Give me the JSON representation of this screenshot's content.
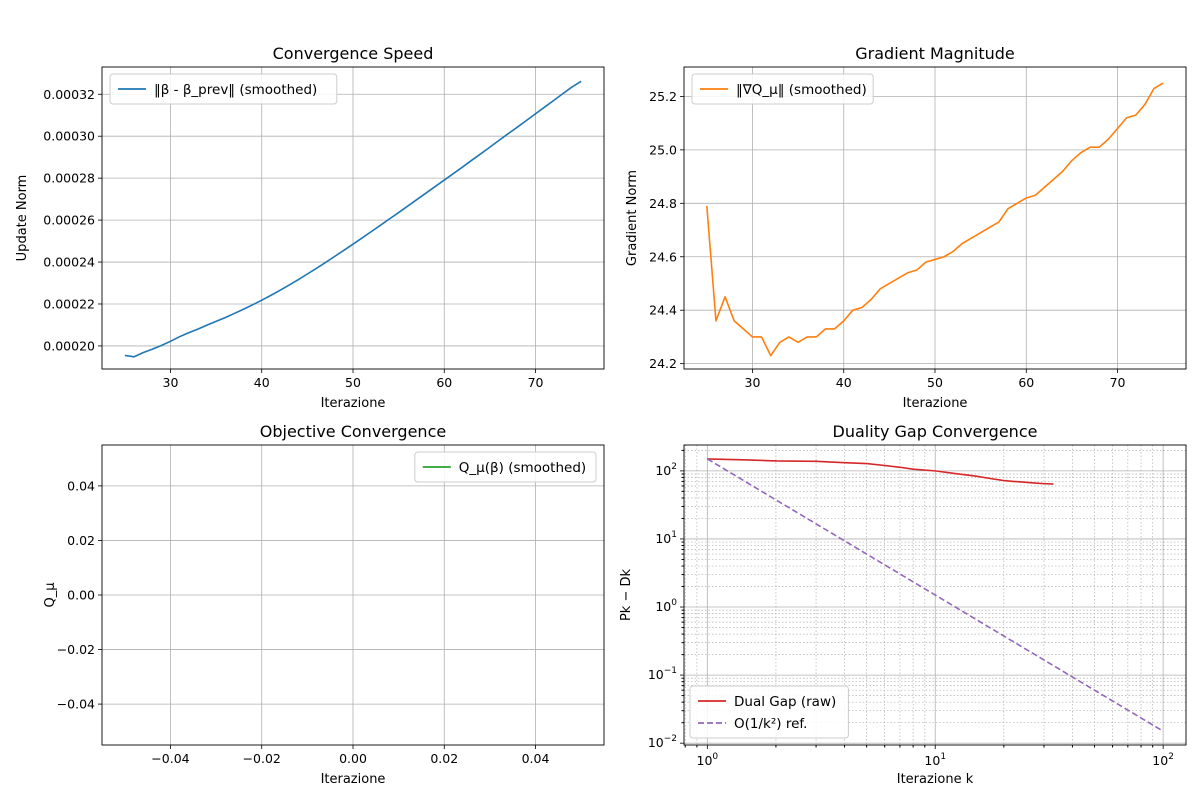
{
  "figure": {
    "suptitle": "",
    "background": "#ffffff"
  },
  "chart_data": [
    {
      "type": "line",
      "title": "Convergence Speed",
      "xlabel": "Iterazione",
      "ylabel": "Update Norm",
      "xlim": [
        22.5,
        77.5
      ],
      "ylim": [
        0.000189,
        0.000333
      ],
      "xticks": [
        30,
        40,
        50,
        60,
        70
      ],
      "xtick_labels": [
        "30",
        "40",
        "50",
        "60",
        "70"
      ],
      "yticks": [
        0.0002,
        0.00022,
        0.00024,
        0.00026,
        0.00028,
        0.0003,
        0.00032
      ],
      "ytick_labels": [
        "0.00020",
        "0.00022",
        "0.00024",
        "0.00026",
        "0.00028",
        "0.00030",
        "0.00032"
      ],
      "grid": true,
      "legend_position": "upper-left",
      "series": [
        {
          "name": "‖β - β_prev‖ (smoothed)",
          "color": "#1f77b4",
          "dash": "solid",
          "x": [
            25,
            26,
            27,
            28,
            29,
            30,
            31,
            32,
            33,
            34,
            35,
            36,
            37,
            38,
            39,
            40,
            41,
            42,
            43,
            44,
            45,
            46,
            47,
            48,
            49,
            50,
            51,
            52,
            53,
            54,
            55,
            56,
            57,
            58,
            59,
            60,
            61,
            62,
            63,
            64,
            65,
            66,
            67,
            68,
            69,
            70,
            71,
            72,
            73,
            74,
            75
          ],
          "y": [
            0.0001955,
            0.0001948,
            0.0001968,
            0.0001984,
            0.0002002,
            0.0002022,
            0.0002044,
            0.0002063,
            0.000208,
            0.0002099,
            0.0002117,
            0.0002135,
            0.0002155,
            0.0002175,
            0.0002196,
            0.0002218,
            0.0002241,
            0.0002265,
            0.000229,
            0.0002316,
            0.0002343,
            0.000237,
            0.0002398,
            0.0002427,
            0.0002456,
            0.0002485,
            0.0002515,
            0.0002545,
            0.0002575,
            0.0002606,
            0.0002636,
            0.0002667,
            0.0002698,
            0.0002729,
            0.000276,
            0.0002791,
            0.0002822,
            0.0002853,
            0.0002885,
            0.0002916,
            0.0002948,
            0.000298,
            0.0003012,
            0.0003043,
            0.0003075,
            0.0003107,
            0.0003139,
            0.0003171,
            0.0003203,
            0.0003235,
            0.0003262
          ]
        }
      ]
    },
    {
      "type": "line",
      "title": "Gradient Magnitude",
      "xlabel": "Iterazione",
      "ylabel": "Gradient Norm",
      "xlim": [
        22.5,
        77.5
      ],
      "ylim": [
        24.18,
        25.31
      ],
      "xticks": [
        30,
        40,
        50,
        60,
        70
      ],
      "xtick_labels": [
        "30",
        "40",
        "50",
        "60",
        "70"
      ],
      "yticks": [
        24.2,
        24.4,
        24.6,
        24.8,
        25.0,
        25.2
      ],
      "ytick_labels": [
        "24.2",
        "24.4",
        "24.6",
        "24.8",
        "25.0",
        "25.2"
      ],
      "grid": true,
      "legend_position": "upper-left",
      "series": [
        {
          "name": "‖∇Q_μ‖ (smoothed)",
          "color": "#ff7f0e",
          "dash": "solid",
          "x": [
            25,
            26,
            27,
            28,
            29,
            30,
            31,
            32,
            33,
            34,
            35,
            36,
            37,
            38,
            39,
            40,
            41,
            42,
            43,
            44,
            45,
            46,
            47,
            48,
            49,
            50,
            51,
            52,
            53,
            54,
            55,
            56,
            57,
            58,
            59,
            60,
            61,
            62,
            63,
            64,
            65,
            66,
            67,
            68,
            69,
            70,
            71,
            72,
            73,
            74,
            75
          ],
          "y": [
            24.79,
            24.36,
            24.45,
            24.36,
            24.33,
            24.3,
            24.3,
            24.23,
            24.28,
            24.3,
            24.28,
            24.3,
            24.3,
            24.33,
            24.33,
            24.36,
            24.4,
            24.41,
            24.44,
            24.48,
            24.5,
            24.52,
            24.54,
            24.55,
            24.58,
            24.59,
            24.6,
            24.62,
            24.65,
            24.67,
            24.69,
            24.71,
            24.73,
            24.78,
            24.8,
            24.82,
            24.83,
            24.86,
            24.89,
            24.92,
            24.96,
            24.99,
            25.01,
            25.01,
            25.04,
            25.08,
            25.12,
            25.13,
            25.17,
            25.23,
            25.25
          ]
        }
      ]
    },
    {
      "type": "line",
      "title": "Objective Convergence",
      "xlabel": "Iterazione",
      "ylabel": "Q_μ",
      "xlim": [
        -0.055,
        0.055
      ],
      "ylim": [
        -0.055,
        0.055
      ],
      "xticks": [
        -0.04,
        -0.02,
        0.0,
        0.02,
        0.04
      ],
      "xtick_labels": [
        "−0.04",
        "−0.02",
        "0.00",
        "0.02",
        "0.04"
      ],
      "yticks": [
        -0.04,
        -0.02,
        0.0,
        0.02,
        0.04
      ],
      "ytick_labels": [
        "−0.04",
        "−0.02",
        "0.00",
        "0.02",
        "0.04"
      ],
      "grid": true,
      "legend_position": "upper-right",
      "series": [
        {
          "name": "Q_μ(β) (smoothed)",
          "color": "#2ca02c",
          "dash": "solid",
          "x": [],
          "y": []
        }
      ]
    },
    {
      "type": "line",
      "log_scale": "both",
      "title": "Duality Gap Convergence",
      "xlabel": "Iterazione k",
      "ylabel": "Pk − Dk",
      "xlim": [
        0.79,
        126
      ],
      "ylim": [
        0.0094,
        240
      ],
      "xticks": [
        1,
        10,
        100
      ],
      "xtick_labels": [
        "10^0",
        "10^1",
        "10^2"
      ],
      "yticks": [
        0.01,
        0.1,
        1,
        10,
        100
      ],
      "ytick_labels": [
        "10^−2",
        "10^−1",
        "10^0",
        "10^1",
        "10^2"
      ],
      "grid": true,
      "legend_position": "lower-left",
      "series": [
        {
          "name": "Dual Gap (raw)",
          "color": "#d62728",
          "dash": "solid",
          "x": [
            1,
            1.5,
            2,
            3,
            4,
            5,
            6,
            7,
            8,
            10,
            12,
            15,
            18,
            20,
            22,
            25,
            28,
            30,
            33
          ],
          "y": [
            150,
            145,
            140,
            138,
            132,
            128,
            120,
            113,
            106,
            100,
            92,
            84,
            76,
            72,
            70,
            68,
            66,
            65,
            64
          ]
        },
        {
          "name": "O(1/k²) ref.",
          "color": "#9467bd",
          "dash": "dashed",
          "x": [
            1,
            100
          ],
          "y": [
            150,
            0.015
          ]
        }
      ]
    }
  ]
}
